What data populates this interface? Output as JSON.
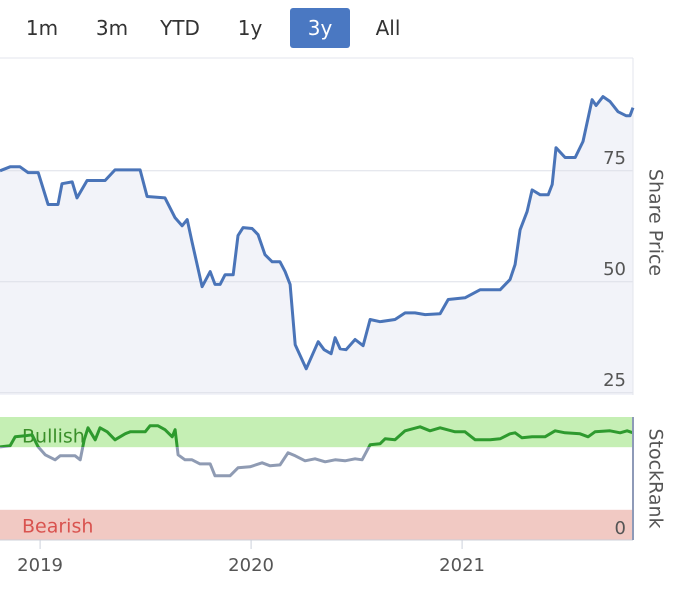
{
  "range_selector": {
    "options": [
      "1m",
      "3m",
      "YTD",
      "1y",
      "3y",
      "All"
    ],
    "selected": 4
  },
  "chart_data": [
    {
      "type": "area-line",
      "axis_title": "Share Price",
      "color": "#4a74b8",
      "fill": "#f2f3f9",
      "x": [
        2018.81,
        2018.858,
        2018.905,
        2018.943,
        2018.991,
        2019.038,
        2019.085,
        2019.104,
        2019.152,
        2019.175,
        2019.223,
        2019.308,
        2019.355,
        2019.474,
        2019.507,
        2019.592,
        2019.64,
        2019.673,
        2019.697,
        2019.72,
        2019.768,
        2019.806,
        2019.829,
        2019.853,
        2019.877,
        2019.915,
        2019.938,
        2019.962,
        2020.005,
        2020.033,
        2020.066,
        2020.1,
        2020.137,
        2020.161,
        2020.185,
        2020.209,
        2020.261,
        2020.318,
        2020.346,
        2020.379,
        2020.398,
        2020.422,
        2020.45,
        2020.493,
        2020.531,
        2020.564,
        2020.611,
        2020.682,
        2020.73,
        2020.777,
        2020.825,
        2020.896,
        2020.934,
        2021.014,
        2021.085,
        2021.18,
        2021.227,
        2021.251,
        2021.275,
        2021.308,
        2021.332,
        2021.37,
        2021.408,
        2021.427,
        2021.445,
        2021.488,
        2021.536,
        2021.573,
        2021.616,
        2021.635,
        2021.668,
        2021.701,
        2021.739,
        2021.777,
        2021.796,
        2021.81
      ],
      "values": [
        75.0,
        75.9,
        75.9,
        74.6,
        74.6,
        67.4,
        67.4,
        72.1,
        72.5,
        68.9,
        72.8,
        72.8,
        75.2,
        75.2,
        69.2,
        68.9,
        64.4,
        62.6,
        64.0,
        59.0,
        48.9,
        52.3,
        49.4,
        49.4,
        51.6,
        51.6,
        60.4,
        62.2,
        62.0,
        60.6,
        56.1,
        54.5,
        54.5,
        52.3,
        49.4,
        35.8,
        30.4,
        36.5,
        34.7,
        33.8,
        37.4,
        34.9,
        34.7,
        37.0,
        35.6,
        41.5,
        41.0,
        41.5,
        43.0,
        43.0,
        42.6,
        42.8,
        46.0,
        46.4,
        48.2,
        48.2,
        50.5,
        53.9,
        61.7,
        65.8,
        70.7,
        69.6,
        69.6,
        71.9,
        80.2,
        78.0,
        78.0,
        81.6,
        91.0,
        89.7,
        91.7,
        90.6,
        88.3,
        87.4,
        87.4,
        89.2
      ],
      "xlim": [
        2018.81,
        2021.81
      ],
      "ylim": [
        24.5,
        100.4
      ],
      "yticks": [
        25,
        50,
        75
      ],
      "grid": true
    },
    {
      "type": "band-line",
      "axis_title": "StockRank",
      "color": "#2e9a2e",
      "low_color": "#8f9bb3",
      "bands": [
        {
          "label": "Bullish",
          "from": 73,
          "to": 100,
          "color": "#c5efb4",
          "label_color": "#3a8f2a"
        },
        {
          "label": "Bearish",
          "from": -10,
          "to": 17,
          "color": "#f1c9c3",
          "label_color": "#d9534f"
        }
      ],
      "x": [
        2018.81,
        2018.858,
        2018.882,
        2018.929,
        2018.962,
        2018.991,
        2019.024,
        2019.071,
        2019.095,
        2019.166,
        2019.19,
        2019.209,
        2019.227,
        2019.261,
        2019.284,
        2019.318,
        2019.355,
        2019.403,
        2019.427,
        2019.498,
        2019.521,
        2019.559,
        2019.592,
        2019.626,
        2019.64,
        2019.654,
        2019.687,
        2019.72,
        2019.758,
        2019.806,
        2019.829,
        2019.9,
        2019.938,
        2019.995,
        2020.052,
        2020.09,
        2020.137,
        2020.175,
        2020.209,
        2020.256,
        2020.303,
        2020.351,
        2020.398,
        2020.445,
        2020.493,
        2020.526,
        2020.564,
        2020.611,
        2020.635,
        2020.682,
        2020.73,
        2020.801,
        2020.848,
        2020.896,
        2020.967,
        2021.014,
        2021.062,
        2021.133,
        2021.18,
        2021.227,
        2021.251,
        2021.284,
        2021.332,
        2021.393,
        2021.441,
        2021.488,
        2021.559,
        2021.597,
        2021.63,
        2021.701,
        2021.749,
        2021.782,
        2021.81
      ],
      "values": [
        73.3,
        74.2,
        82.3,
        83.2,
        84.1,
        73.3,
        66.2,
        61.7,
        65.3,
        65.3,
        61.7,
        79.6,
        90.3,
        79.6,
        90.3,
        86.8,
        79.6,
        85.0,
        86.8,
        86.8,
        92.1,
        92.1,
        88.6,
        82.3,
        88.6,
        66.2,
        61.7,
        61.7,
        58.1,
        58.1,
        47.4,
        47.4,
        54.6,
        55.5,
        59.0,
        56.4,
        57.2,
        68.0,
        65.3,
        60.8,
        62.6,
        59.9,
        61.7,
        60.8,
        62.6,
        61.7,
        75.1,
        76.0,
        80.5,
        79.6,
        87.7,
        91.2,
        87.7,
        90.3,
        86.8,
        86.8,
        79.6,
        79.6,
        80.5,
        85.0,
        85.9,
        81.4,
        82.3,
        82.3,
        87.7,
        85.9,
        85.0,
        82.3,
        86.8,
        87.7,
        85.9,
        87.7,
        85.9
      ],
      "xlim": [
        2018.81,
        2021.81
      ],
      "ylim": [
        -10,
        100
      ],
      "yticks": [
        0
      ],
      "xticks": [
        2019,
        2020,
        2021
      ]
    }
  ]
}
